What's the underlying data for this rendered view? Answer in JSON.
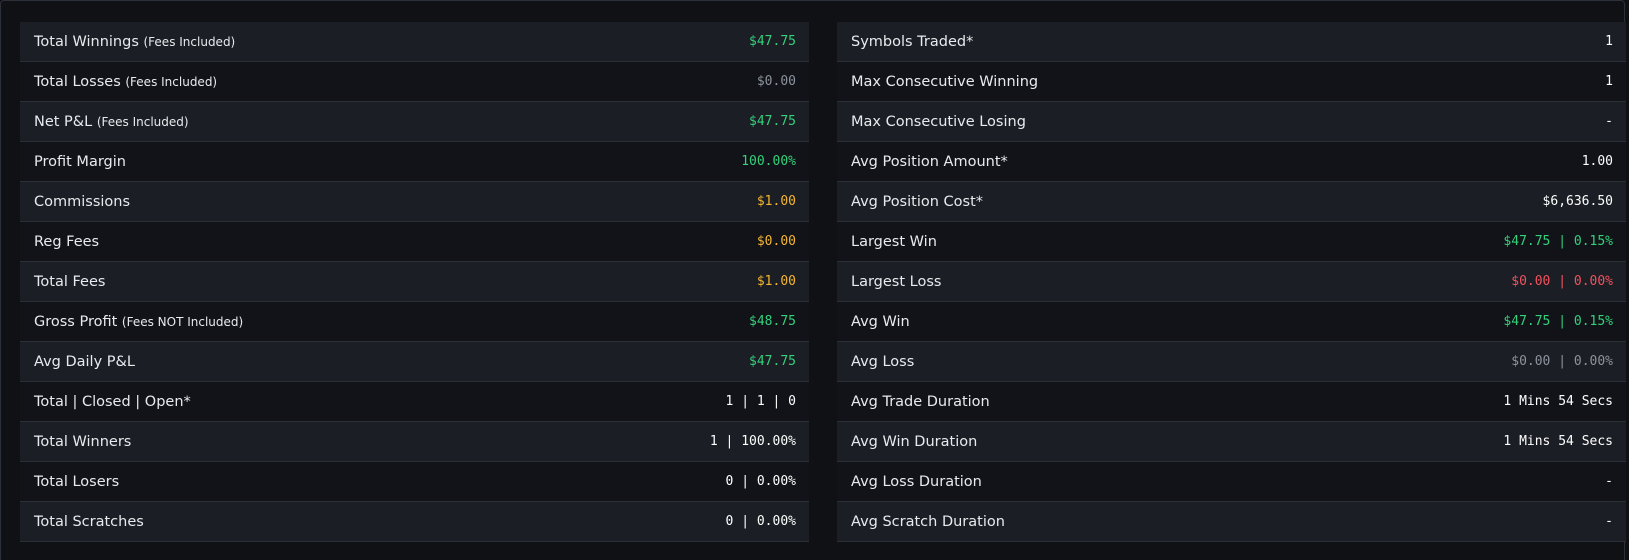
{
  "colors": {
    "background": "#0f1115",
    "row_odd": "#1b1e24",
    "row_even": "#111318",
    "positive": "#34d17a",
    "neutral": "#8d939c",
    "fee": "#f2b632",
    "negative": "#f0525e",
    "text": "#e8eaee"
  },
  "left": [
    {
      "id": "total-winnings",
      "label": "Total Winnings",
      "note": "(Fees Included)",
      "value": "$47.75",
      "tone": "green"
    },
    {
      "id": "total-losses",
      "label": "Total Losses",
      "note": "(Fees Included)",
      "value": "$0.00",
      "tone": "gray"
    },
    {
      "id": "net-pl",
      "label": "Net P&L",
      "note": "(Fees Included)",
      "value": "$47.75",
      "tone": "green"
    },
    {
      "id": "profit-margin",
      "label": "Profit Margin",
      "note": "",
      "value": "100.00%",
      "tone": "green"
    },
    {
      "id": "commissions",
      "label": "Commissions",
      "note": "",
      "value": "$1.00",
      "tone": "amber"
    },
    {
      "id": "reg-fees",
      "label": "Reg Fees",
      "note": "",
      "value": "$0.00",
      "tone": "amber"
    },
    {
      "id": "total-fees",
      "label": "Total Fees",
      "note": "",
      "value": "$1.00",
      "tone": "amber"
    },
    {
      "id": "gross-profit",
      "label": "Gross Profit",
      "note": "(Fees NOT Included)",
      "value": "$48.75",
      "tone": "green"
    },
    {
      "id": "avg-daily-pl",
      "label": "Avg Daily P&L",
      "note": "",
      "value": "$47.75",
      "tone": "green"
    },
    {
      "id": "total-closed-open",
      "label": "Total | Closed | Open*",
      "note": "",
      "value": "1 | 1 | 0",
      "tone": "white"
    },
    {
      "id": "total-winners",
      "label": "Total Winners",
      "note": "",
      "value": "1 | 100.00%",
      "tone": "white"
    },
    {
      "id": "total-losers",
      "label": "Total Losers",
      "note": "",
      "value": "0 | 0.00%",
      "tone": "white"
    },
    {
      "id": "total-scratches",
      "label": "Total Scratches",
      "note": "",
      "value": "0 | 0.00%",
      "tone": "white"
    }
  ],
  "right": [
    {
      "id": "symbols-traded",
      "label": "Symbols Traded*",
      "note": "",
      "value": "1",
      "tone": "white"
    },
    {
      "id": "max-consecutive-winning",
      "label": "Max Consecutive Winning",
      "note": "",
      "value": "1",
      "tone": "white"
    },
    {
      "id": "max-consecutive-losing",
      "label": "Max Consecutive Losing",
      "note": "",
      "value": "-",
      "tone": "white"
    },
    {
      "id": "avg-position-amount",
      "label": "Avg Position Amount*",
      "note": "",
      "value": "1.00",
      "tone": "white"
    },
    {
      "id": "avg-position-cost",
      "label": "Avg Position Cost*",
      "note": "",
      "value": "$6,636.50",
      "tone": "white"
    },
    {
      "id": "largest-win",
      "label": "Largest Win",
      "note": "",
      "value": "$47.75 | 0.15%",
      "tone": "green"
    },
    {
      "id": "largest-loss",
      "label": "Largest Loss",
      "note": "",
      "value": "$0.00 | 0.00%",
      "tone": "red"
    },
    {
      "id": "avg-win",
      "label": "Avg Win",
      "note": "",
      "value": "$47.75 | 0.15%",
      "tone": "green"
    },
    {
      "id": "avg-loss",
      "label": "Avg Loss",
      "note": "",
      "value": "$0.00 | 0.00%",
      "tone": "gray"
    },
    {
      "id": "avg-trade-duration",
      "label": "Avg Trade Duration",
      "note": "",
      "value": "1 Mins 54 Secs",
      "tone": "white"
    },
    {
      "id": "avg-win-duration",
      "label": "Avg Win Duration",
      "note": "",
      "value": "1 Mins 54 Secs",
      "tone": "white"
    },
    {
      "id": "avg-loss-duration",
      "label": "Avg Loss Duration",
      "note": "",
      "value": "-",
      "tone": "white"
    },
    {
      "id": "avg-scratch-duration",
      "label": "Avg Scratch Duration",
      "note": "",
      "value": "-",
      "tone": "white"
    }
  ]
}
